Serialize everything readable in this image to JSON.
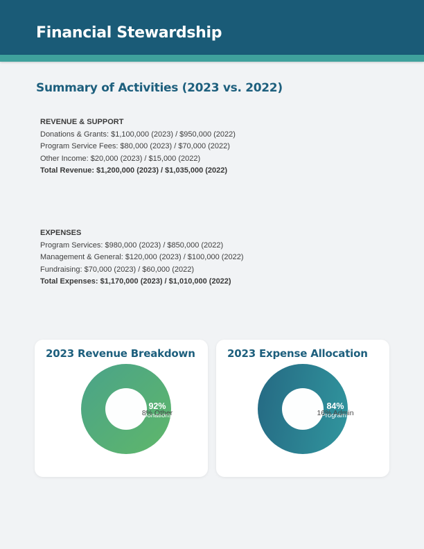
{
  "header": {
    "title": "Financial Stewardship"
  },
  "summary": {
    "title": "Summary of Activities (2023 vs. 2022)",
    "revenue": {
      "heading": "REVENUE & SUPPORT",
      "lines": [
        "Donations & Grants: $1,100,000 (2023) / $950,000 (2022)",
        "Program Service Fees: $80,000 (2023) / $70,000 (2022)",
        "Other Income: $20,000 (2023) / $15,000 (2022)"
      ],
      "total": "Total Revenue: $1,200,000 (2023) / $1,035,000 (2022)"
    },
    "expenses": {
      "heading": "EXPENSES",
      "lines": [
        "Program Services: $980,000 (2023) / $850,000 (2022)",
        "Management & General: $120,000 (2023) / $100,000 (2022)",
        "Fundraising: $70,000 (2023) / $60,000 (2022)"
      ],
      "total": "Total Expenses: $1,170,000 (2023) / $1,010,000 (2022)"
    }
  },
  "charts": [
    {
      "title": "2023 Revenue Breakdown",
      "pct_label": "92%",
      "pct_name": "Donations",
      "secondary_label": "8% Other"
    },
    {
      "title": "2023 Expense Allocation",
      "pct_label": "84%",
      "pct_name": "Programs",
      "secondary_label": "16% Admin"
    }
  ],
  "chart_data": [
    {
      "type": "pie",
      "title": "2023 Revenue Breakdown",
      "labels": [
        "Donations",
        "Other"
      ],
      "values": [
        92,
        8
      ],
      "unit": "percent",
      "annotations": [
        "92% Donations",
        "8% Other"
      ],
      "ring_colors": [
        "#4aa389",
        "#5db56d"
      ]
    },
    {
      "type": "pie",
      "title": "2023 Expense Allocation",
      "labels": [
        "Programs",
        "Admin"
      ],
      "values": [
        84,
        16
      ],
      "unit": "percent",
      "annotations": [
        "84% Programs",
        "16% Admin"
      ],
      "ring_colors": [
        "#256983",
        "#31969e"
      ]
    }
  ],
  "colors": {
    "header_bg": "#1a5b77",
    "accent_strip": "#3fa19c",
    "heading_teal": "#1d5f7d",
    "body_text": "#3e3e3e",
    "page_bg": "#f1f3f5",
    "card_bg": "#ffffff"
  }
}
